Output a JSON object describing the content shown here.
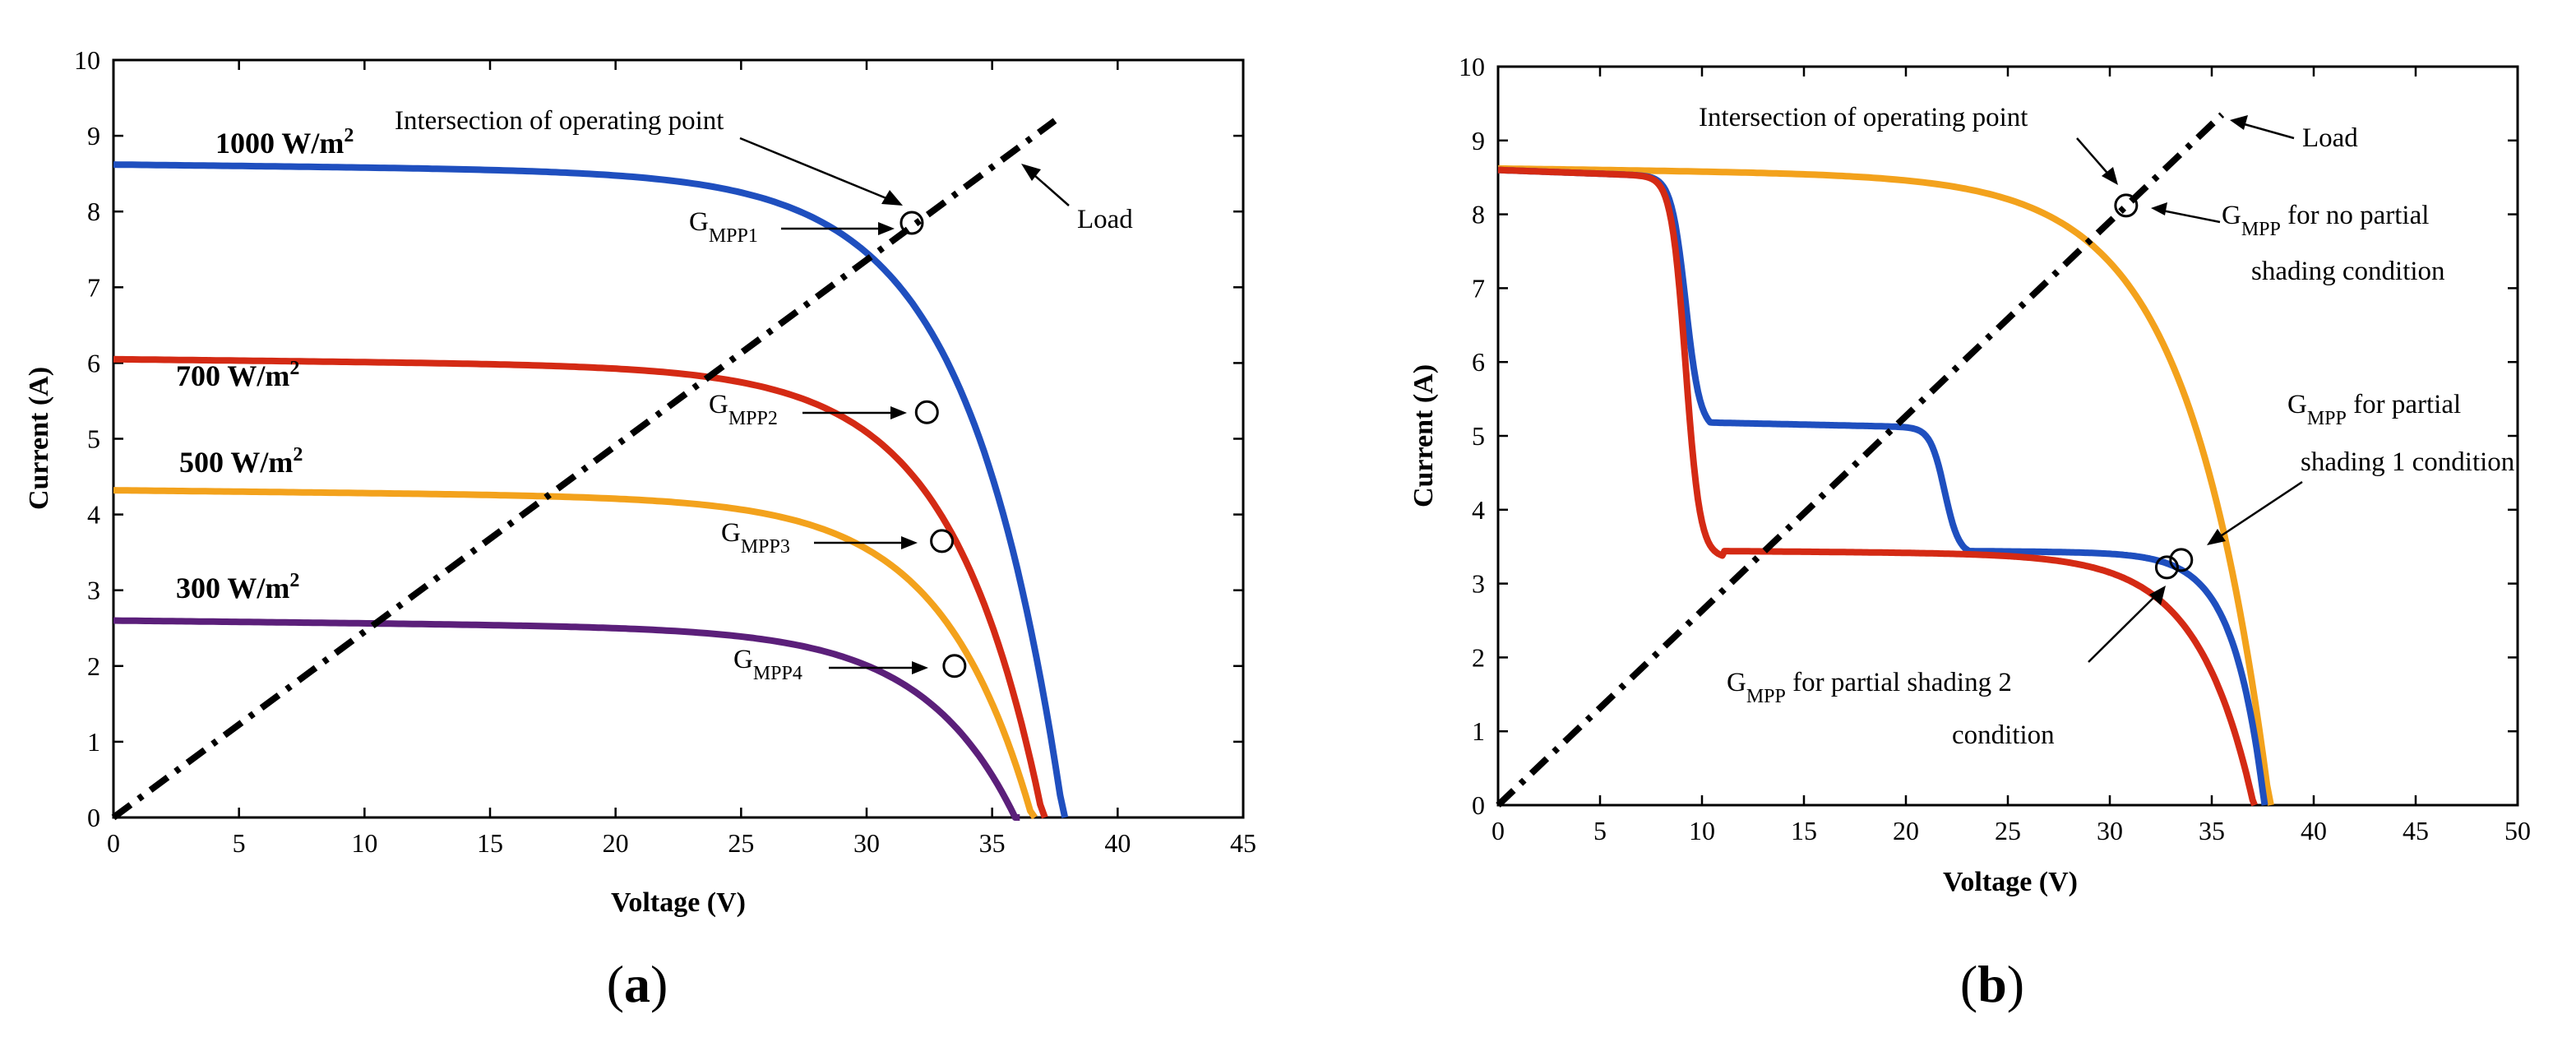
{
  "chart_data": [
    {
      "type": "line",
      "panel_label": "a",
      "xlabel": "Voltage (V)",
      "ylabel": "Current (A)",
      "xlim": [
        0,
        45
      ],
      "ylim": [
        0,
        10
      ],
      "xticks": [
        0,
        5,
        10,
        15,
        20,
        25,
        30,
        35,
        40,
        45
      ],
      "yticks": [
        0,
        1,
        2,
        3,
        4,
        5,
        6,
        7,
        8,
        9,
        10
      ],
      "series": [
        {
          "name": "1000 W/m",
          "sup": "2",
          "color": "#1f4fbf",
          "isc": 8.62,
          "voc": 37.9,
          "k": 3.35
        },
        {
          "name": "700 W/m",
          "sup": "2",
          "color": "#d42a14",
          "isc": 6.05,
          "voc": 37.1,
          "k": 3.4
        },
        {
          "name": "500 W/m",
          "sup": "2",
          "color": "#f3a21c",
          "isc": 4.32,
          "voc": 36.7,
          "k": 3.4
        },
        {
          "name": "300 W/m",
          "sup": "2",
          "color": "#5b1f7a",
          "isc": 2.6,
          "voc": 36.1,
          "k": 3.3
        }
      ],
      "load_line": {
        "x": [
          0,
          37.5
        ],
        "y": [
          0,
          9.2
        ]
      },
      "points": [
        {
          "label": "G",
          "sub": "MPP1",
          "x": 31.8,
          "y": 7.85
        },
        {
          "label": "G",
          "sub": "MPP2",
          "x": 32.4,
          "y": 5.35
        },
        {
          "label": "G",
          "sub": "MPP3",
          "x": 33.0,
          "y": 3.65
        },
        {
          "label": "G",
          "sub": "MPP4",
          "x": 33.5,
          "y": 2.0
        }
      ],
      "annotations": {
        "intersection": "Intersection of operating point",
        "load": "Load"
      }
    },
    {
      "type": "line",
      "panel_label": "b",
      "xlabel": "Voltage (V)",
      "ylabel": "Current (A)",
      "xlim": [
        0,
        50
      ],
      "ylim": [
        0,
        10
      ],
      "xticks": [
        0,
        5,
        10,
        15,
        20,
        25,
        30,
        35,
        40,
        45,
        50
      ],
      "yticks": [
        0,
        1,
        2,
        3,
        4,
        5,
        6,
        7,
        8,
        9,
        10
      ],
      "series": [
        {
          "name": "no partial shading",
          "color": "#f3a21c"
        },
        {
          "name": "partial shading 1",
          "color": "#1f4fbf"
        },
        {
          "name": "partial shading 2",
          "color": "#d42a14"
        }
      ],
      "load_line": {
        "x": [
          0,
          35.5
        ],
        "y": [
          0,
          9.35
        ]
      },
      "points": [
        {
          "label": "G",
          "sub": "MPP",
          "x": 30.8,
          "y": 8.12
        },
        {
          "label": "G",
          "sub": "MPP",
          "x": 33.5,
          "y": 3.32
        },
        {
          "label": "G",
          "sub": "MPP",
          "x": 32.8,
          "y": 3.22
        }
      ],
      "annotations": {
        "intersection": "Intersection of operating point",
        "load": "Load",
        "no_shading": {
          "g": "G",
          "sub": "MPP",
          "line1": " for no partial",
          "line2": "shading condition"
        },
        "shading1": {
          "g": "G",
          "sub": "MPP",
          "line1": " for partial",
          "line2": "shading 1 condition"
        },
        "shading2": {
          "g": "G",
          "sub": "MPP",
          "line1": " for partial shading 2",
          "line2": "condition"
        }
      }
    }
  ]
}
